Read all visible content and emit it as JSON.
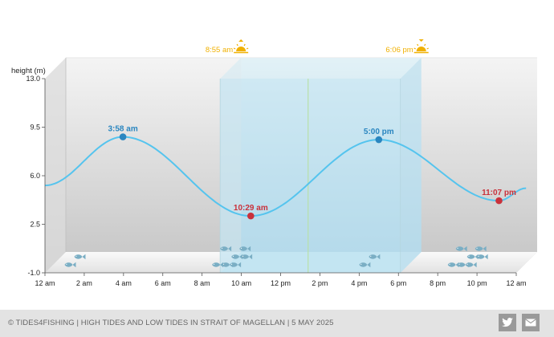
{
  "chart_data": {
    "type": "line",
    "ylabel": "height (m)",
    "y_ticks": [
      "13.0",
      "9.5",
      "6.0",
      "2.5",
      "-1.0"
    ],
    "ylim": [
      -1.0,
      13.0
    ],
    "x_ticks": [
      "12 am",
      "2 am",
      "4 am",
      "6 am",
      "8 am",
      "10 am",
      "12 pm",
      "2 pm",
      "4 pm",
      "6 pm",
      "8 pm",
      "10 pm",
      "12 am"
    ],
    "x_range_hours": [
      0,
      24
    ],
    "series": [
      {
        "points": [
          {
            "x": 0,
            "y": 5.3
          },
          {
            "x": 3.97,
            "y": 8.8,
            "label": "3:58 am",
            "kind": "high"
          },
          {
            "x": 10.48,
            "y": 3.1,
            "label": "10:29 am",
            "kind": "low"
          },
          {
            "x": 17.0,
            "y": 8.6,
            "label": "5:00 pm",
            "kind": "high"
          },
          {
            "x": 23.12,
            "y": 4.2,
            "label": "11:07 pm",
            "kind": "low"
          },
          {
            "x": 24.5,
            "y": 5.1
          }
        ]
      }
    ],
    "sunrise": {
      "x": 8.92,
      "label": "8:55 am"
    },
    "sunset": {
      "x": 18.1,
      "label": "6:06 pm"
    },
    "now_x": 13.4,
    "fish_markers_at_hours": [
      1,
      9,
      16,
      21
    ],
    "grid": true,
    "colors": {
      "curve": "#55c4ee",
      "high": "#2a86c0",
      "low": "#c9313b",
      "sun": "#f0b000",
      "daylight": "#b7e1f0",
      "now_line": "#b8e0a8"
    }
  },
  "footer": {
    "text": "© TIDES4FISHING | HIGH TIDES AND LOW TIDES IN STRAIT OF MAGELLAN | 5 MAY 2025",
    "twitter_icon": "twitter-icon",
    "mail_icon": "mail-icon"
  }
}
